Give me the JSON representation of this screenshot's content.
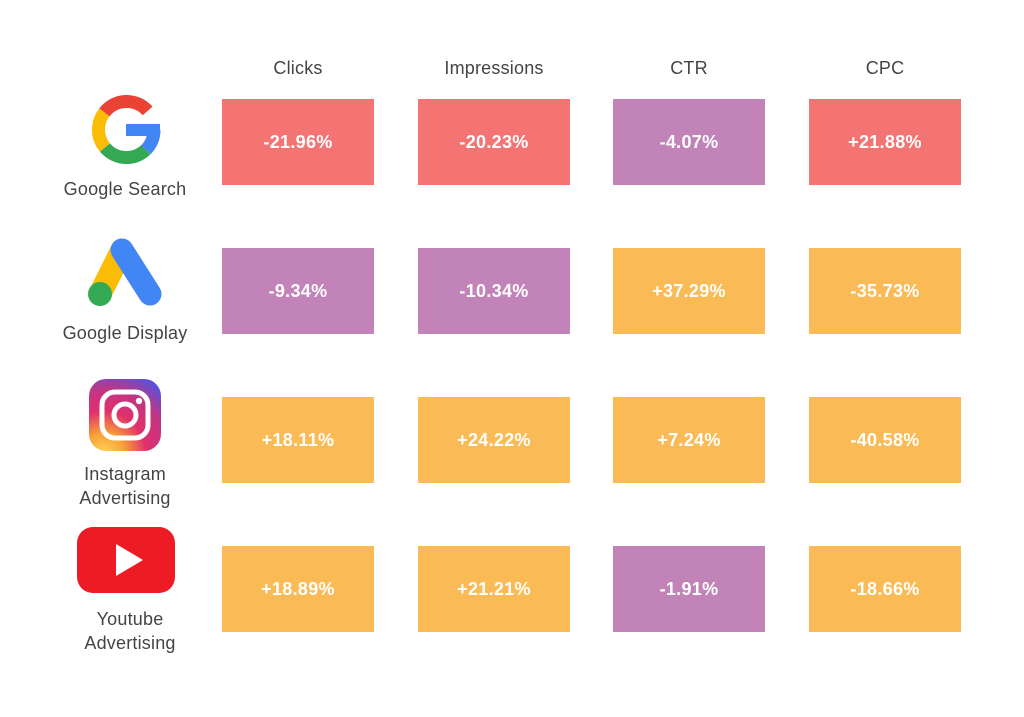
{
  "chart_data": {
    "type": "heatmap",
    "columns": [
      "Clicks",
      "Impressions",
      "CTR",
      "CPC"
    ],
    "rows": [
      {
        "platform": "Google Search",
        "label_lines": [
          "Google Search"
        ],
        "icon": "google-g-icon",
        "values": [
          "-21.96%",
          "-20.23%",
          "-4.07%",
          "+21.88%"
        ],
        "colors": [
          "#f47474",
          "#f47474",
          "#c283b8",
          "#f47474"
        ]
      },
      {
        "platform": "Google Display",
        "label_lines": [
          "Google Display"
        ],
        "icon": "google-ads-icon",
        "values": [
          "-9.34%",
          "-10.34%",
          "+37.29%",
          "-35.73%"
        ],
        "colors": [
          "#c283b8",
          "#c283b8",
          "#fabb56",
          "#fabb56"
        ]
      },
      {
        "platform": "Instagram Advertising",
        "label_lines": [
          "Instagram",
          "Advertising"
        ],
        "icon": "instagram-icon",
        "values": [
          "+18.11%",
          "+24.22%",
          "+7.24%",
          "-40.58%"
        ],
        "colors": [
          "#fabb56",
          "#fabb56",
          "#fabb56",
          "#fabb56"
        ]
      },
      {
        "platform": "Youtube Advertising",
        "label_lines": [
          "Youtube",
          "Advertising"
        ],
        "icon": "youtube-icon",
        "values": [
          "+18.89%",
          "+21.21%",
          "-1.91%",
          "-18.66%"
        ],
        "colors": [
          "#fabb56",
          "#fabb56",
          "#c283b8",
          "#fabb56"
        ]
      }
    ]
  }
}
